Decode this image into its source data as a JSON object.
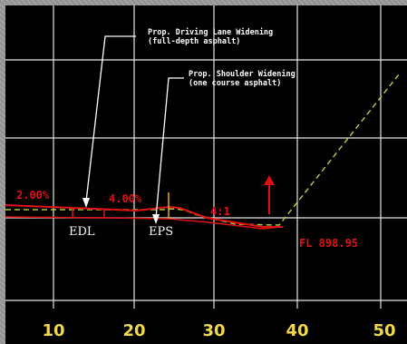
{
  "callouts": {
    "driving_lane_line1": "Prop. Driving Lane Widening",
    "driving_lane_line2": "(full-depth asphalt)",
    "shoulder_line1": "Prop. Shoulder Widening",
    "shoulder_line2": "(one course asphalt)"
  },
  "slopes": {
    "left": "2.00%",
    "middle": "4.00%",
    "ratio": "4:1"
  },
  "points": {
    "edl": "EDL",
    "eps": "EPS",
    "fl": "FL 898.95"
  },
  "axis": {
    "ticks": [
      "10",
      "20",
      "30",
      "40",
      "50"
    ]
  },
  "colors": {
    "background": "#000000",
    "grid": "#e6e6e6",
    "proposed": "#e01010",
    "existing": "#a8c83a",
    "axis_text": "#f2d94a"
  }
}
